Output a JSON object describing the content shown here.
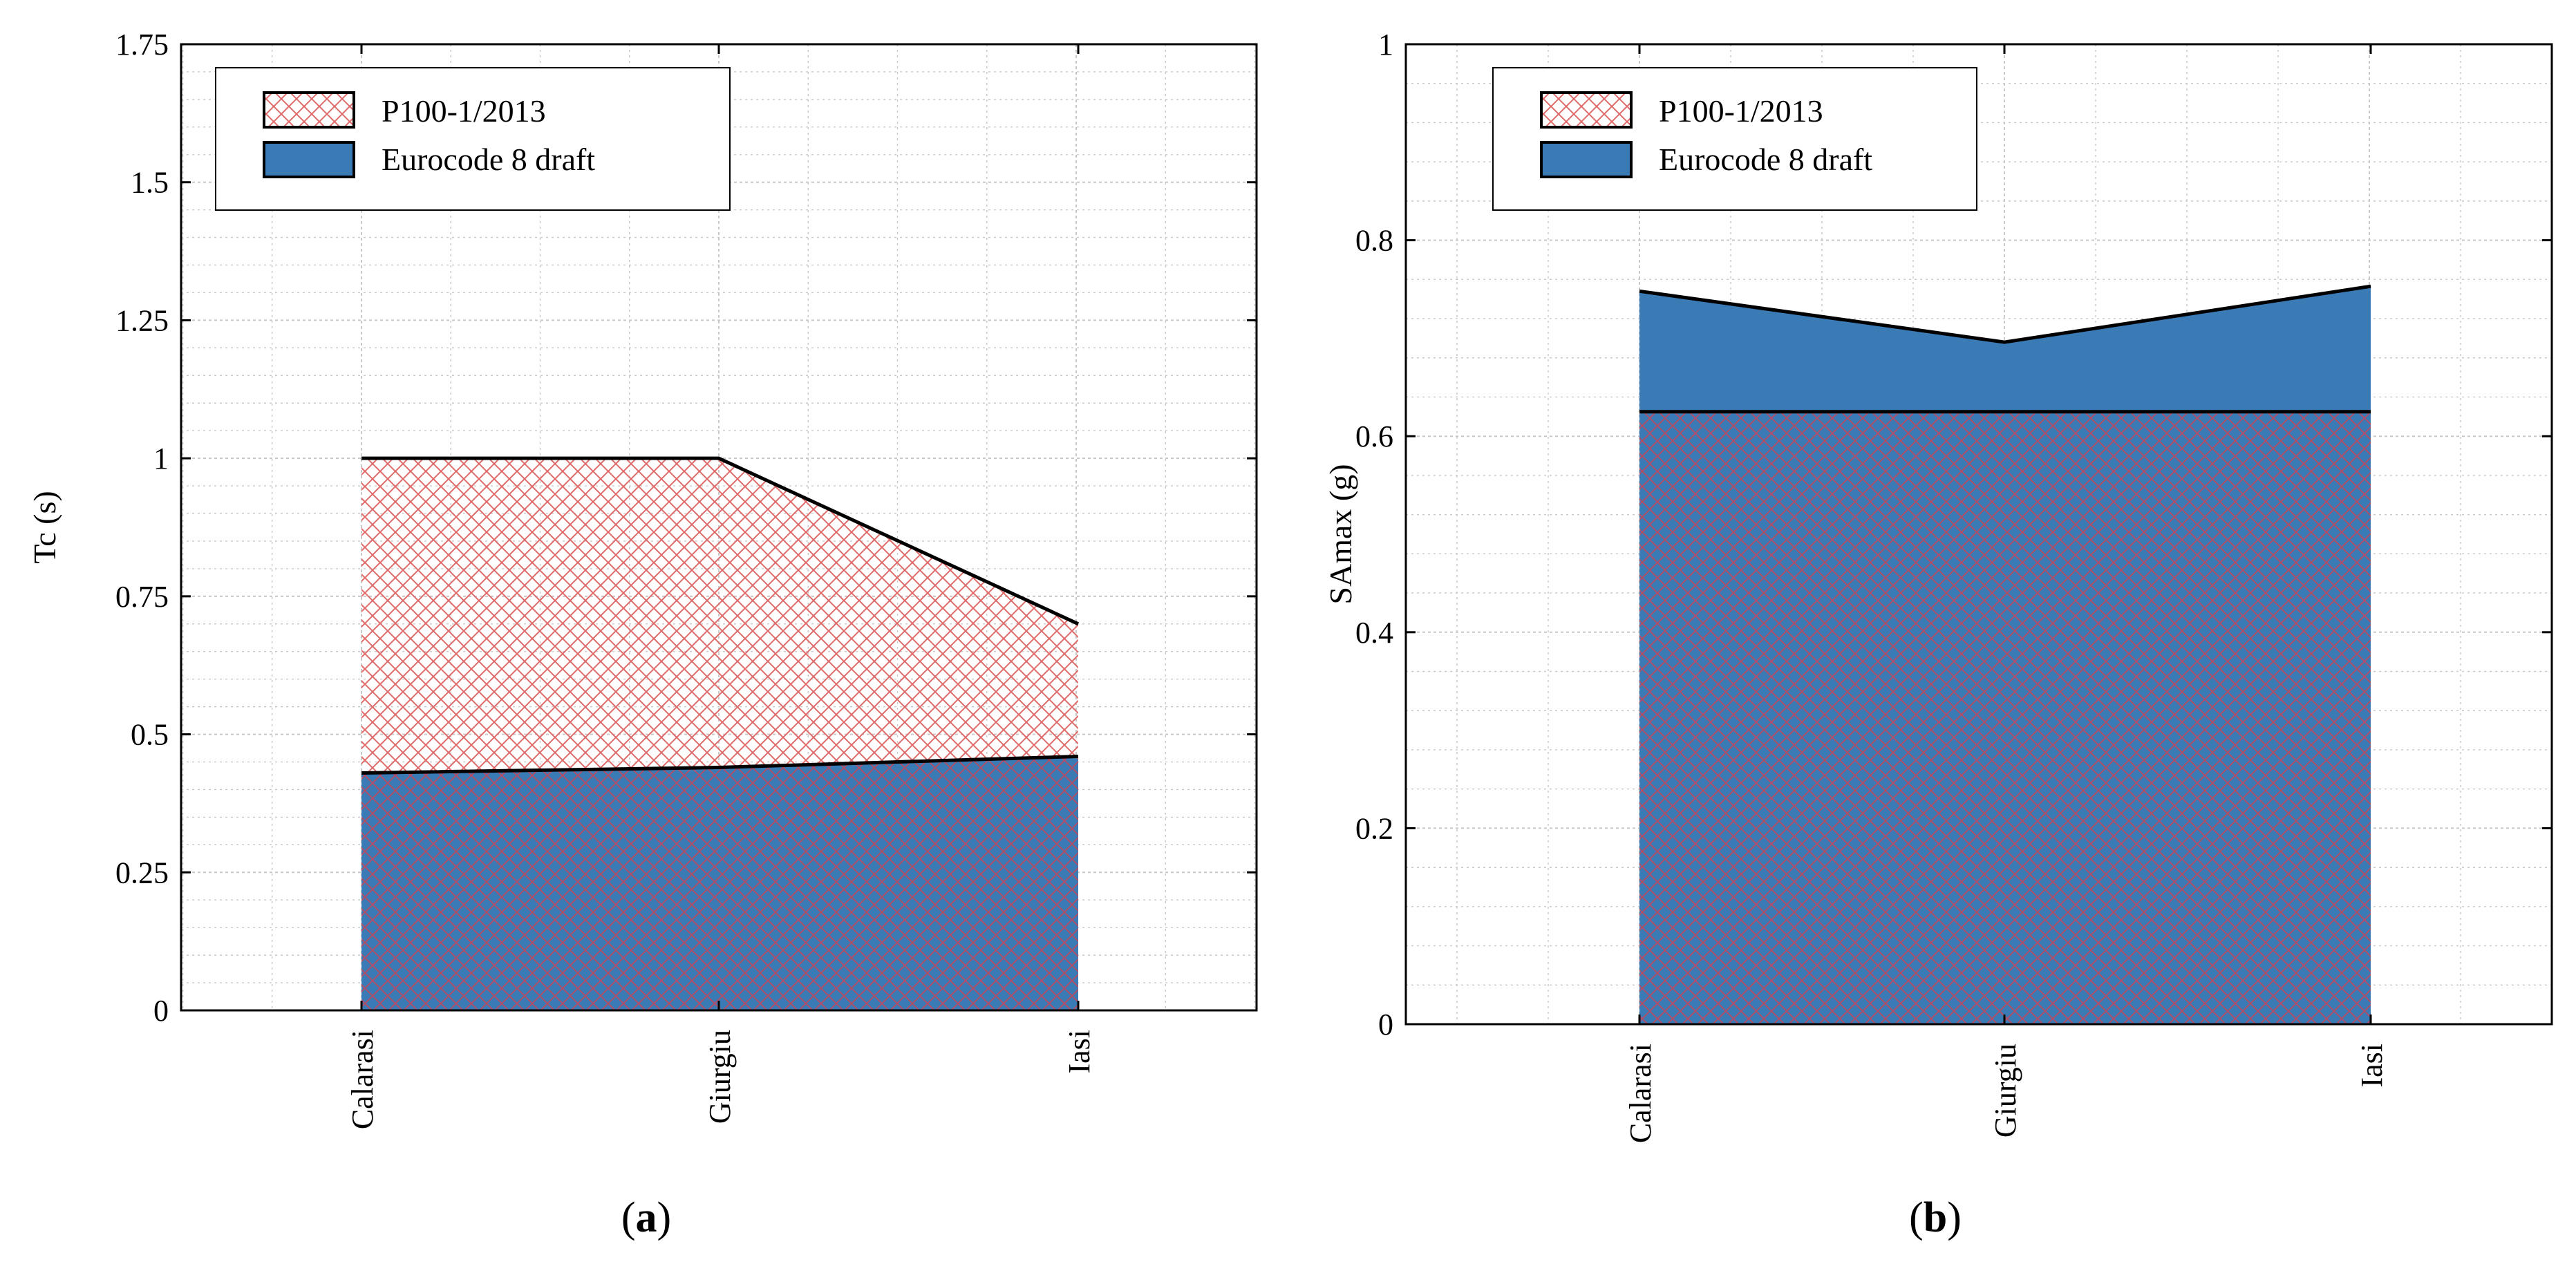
{
  "colors": {
    "eurocode_fill": "#3a7ab5",
    "hatch": "#e06a6a",
    "hatch_on_blue": "#b04f6a",
    "grid": "#c8c8c8",
    "axis": "#000000"
  },
  "legend": {
    "p100_label": "P100-1/2013",
    "ec8_label": "Eurocode 8 draft"
  },
  "chart_data": [
    {
      "type": "area",
      "panel": "a",
      "panel_label": {
        "open": "(",
        "letter": "a",
        "close": ")"
      },
      "ylabel": "Tc (s)",
      "categories": [
        "Calarasi",
        "Giurgiu",
        "Iasi"
      ],
      "ylim": [
        0,
        1.75
      ],
      "ytick_values": [
        0,
        0.25,
        0.5,
        0.75,
        1,
        1.25,
        1.5,
        1.75
      ],
      "ytick_labels": [
        "0",
        "0.25",
        "0.5",
        "0.75",
        "1",
        "1.25",
        "1.5",
        "1.75"
      ],
      "legend_position": "top-left",
      "series": [
        {
          "name": "P100-1/2013",
          "values": [
            1.0,
            1.0,
            0.7
          ]
        },
        {
          "name": "Eurocode 8 draft",
          "values": [
            0.43,
            0.44,
            0.46
          ]
        }
      ]
    },
    {
      "type": "area",
      "panel": "b",
      "panel_label": {
        "open": "(",
        "letter": "b",
        "close": ")"
      },
      "ylabel": "SAmax (g)",
      "categories": [
        "Calarasi",
        "Giurgiu",
        "Iasi"
      ],
      "ylim": [
        0,
        1
      ],
      "ytick_values": [
        0,
        0.2,
        0.4,
        0.6,
        0.8,
        1
      ],
      "ytick_labels": [
        "0",
        "0.2",
        "0.4",
        "0.6",
        "0.8",
        "1"
      ],
      "legend_position": "top-left",
      "series": [
        {
          "name": "P100-1/2013",
          "values": [
            0.625,
            0.625,
            0.625
          ]
        },
        {
          "name": "Eurocode 8 draft",
          "values": [
            0.748,
            0.696,
            0.753
          ]
        }
      ]
    }
  ]
}
